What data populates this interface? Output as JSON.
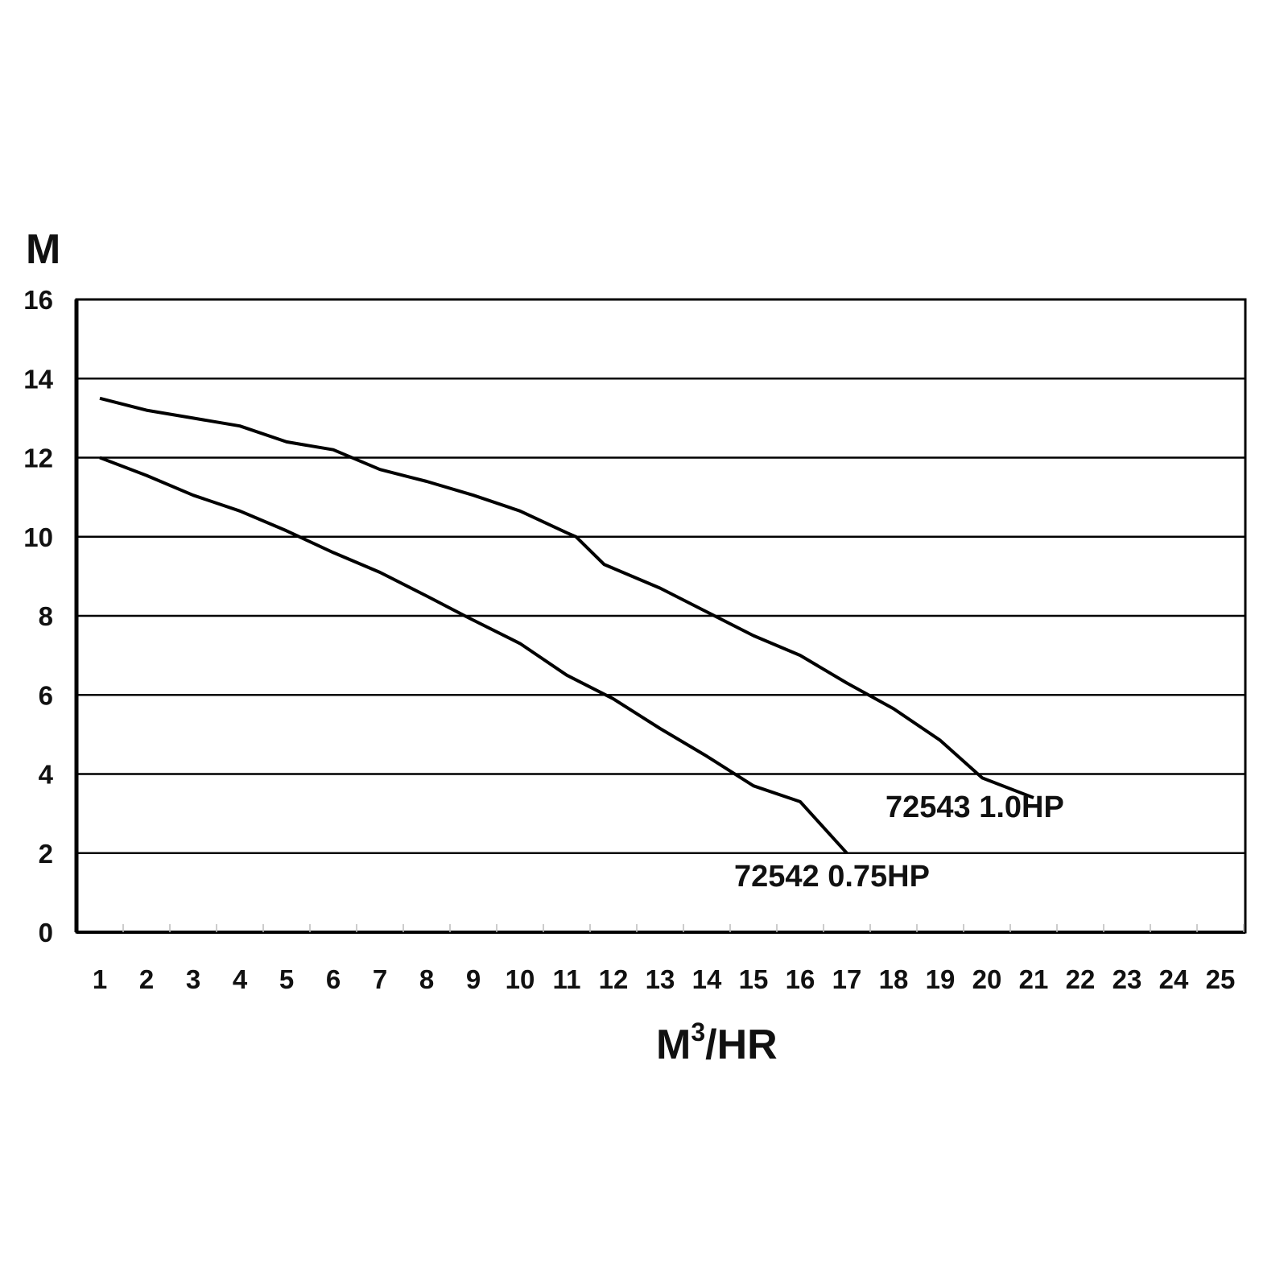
{
  "chart_data": {
    "type": "line",
    "title": "",
    "ylabel": "M",
    "xlabel_main": "M",
    "xlabel_sup": "3",
    "xlabel_rest": "/HR",
    "xlim": [
      1,
      25
    ],
    "ylim": [
      0,
      16
    ],
    "x_ticks": [
      1,
      2,
      3,
      4,
      5,
      6,
      7,
      8,
      9,
      10,
      11,
      12,
      13,
      14,
      15,
      16,
      17,
      18,
      19,
      20,
      21,
      22,
      23,
      24,
      25
    ],
    "y_ticks": [
      0,
      2,
      4,
      6,
      8,
      10,
      12,
      14,
      16
    ],
    "grid": "horizontal",
    "line_color": "#000000",
    "series": [
      {
        "name": "72543 1.0HP",
        "x": [
          1,
          2,
          3,
          4,
          5,
          6,
          7,
          8,
          9,
          10,
          11,
          11.2,
          11.8,
          13,
          14,
          15,
          16,
          17,
          18,
          19,
          19.9,
          21
        ],
        "y": [
          13.5,
          13.2,
          13.0,
          12.8,
          12.4,
          12.2,
          11.7,
          11.4,
          11.05,
          10.65,
          10.1,
          10.0,
          9.3,
          8.7,
          8.1,
          7.5,
          7.0,
          6.3,
          5.65,
          4.85,
          3.9,
          3.4
        ]
      },
      {
        "name": "72542 0.75HP",
        "x": [
          1,
          2,
          3,
          4,
          5,
          6,
          7,
          8,
          8.9,
          10,
          11,
          12,
          13,
          14,
          15,
          16,
          17
        ],
        "y": [
          12.0,
          11.55,
          11.05,
          10.65,
          10.15,
          9.6,
          9.1,
          8.5,
          7.95,
          7.3,
          6.5,
          5.9,
          5.15,
          4.45,
          3.7,
          3.3,
          2.0
        ]
      }
    ]
  }
}
